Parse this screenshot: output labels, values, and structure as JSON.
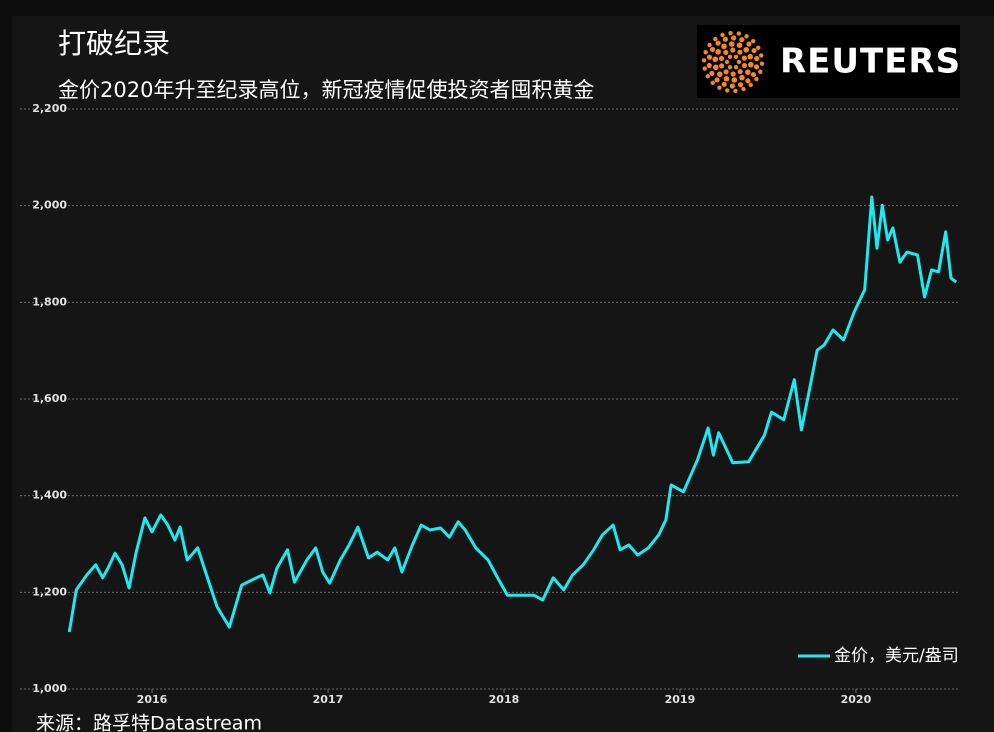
{
  "chart_data": {
    "type": "line",
    "title": "打破纪录",
    "subtitle": "金价2020年升至纪录高位，新冠疫情促使投资者囤积黄金",
    "source": "来源：路孚特Datastream",
    "logo": "REUTERS",
    "legend": "bottom-right",
    "grid": true,
    "xlim": [
      2015.25,
      2020.58
    ],
    "xticks": [
      2016,
      2017,
      2018,
      2019,
      2020
    ],
    "ylim": [
      1000,
      2200
    ],
    "yticks": [
      {
        "value": 1000,
        "label": "1,000"
      },
      {
        "value": 1200,
        "label": "1,200"
      },
      {
        "value": 1400,
        "label": "1,400"
      },
      {
        "value": 1600,
        "label": "1,600"
      },
      {
        "value": 1800,
        "label": "1,800"
      },
      {
        "value": 2000,
        "label": "2,000"
      },
      {
        "value": 2200,
        "label": "2,200"
      }
    ],
    "x": [
      2015.53,
      2015.57,
      2015.63,
      2015.68,
      2015.72,
      2015.75,
      2015.79,
      2015.83,
      2015.87,
      2015.91,
      2015.96,
      2016.0,
      2016.05,
      2016.09,
      2016.13,
      2016.16,
      2016.2,
      2016.26,
      2016.31,
      2016.37,
      2016.44,
      2016.51,
      2016.57,
      2016.63,
      2016.67,
      2016.71,
      2016.77,
      2016.81,
      2016.88,
      2016.93,
      2016.97,
      2017.01,
      2017.07,
      2017.12,
      2017.17,
      2017.23,
      2017.28,
      2017.34,
      2017.38,
      2017.42,
      2017.48,
      2017.53,
      2017.58,
      2017.64,
      2017.69,
      2017.74,
      2017.78,
      2017.84,
      2017.91,
      2017.97,
      2018.02,
      2018.08,
      2018.17,
      2018.22,
      2018.28,
      2018.34,
      2018.39,
      2018.45,
      2018.51,
      2018.56,
      2018.62,
      2018.66,
      2018.71,
      2018.76,
      2018.82,
      2018.88,
      2018.92,
      2018.95,
      2019.02,
      2019.1,
      2019.16,
      2019.19,
      2019.22,
      2019.3,
      2019.39,
      2019.48,
      2019.52,
      2019.59,
      2019.65,
      2019.69,
      2019.73,
      2019.78,
      2019.82,
      2019.87,
      2019.93,
      2019.99,
      2020.05,
      2020.09,
      2020.12,
      2020.15,
      2020.18,
      2020.21,
      2020.25,
      2020.29,
      2020.35,
      2020.39,
      2020.43,
      2020.47,
      2020.51,
      2020.54,
      2020.57
    ],
    "series": [
      {
        "name": "金价，美元/盎司",
        "color": "#1ee8f0",
        "values": [
          1118,
          1205,
          1236,
          1257,
          1230,
          1250,
          1281,
          1257,
          1209,
          1283,
          1354,
          1325,
          1360,
          1339,
          1308,
          1335,
          1267,
          1292,
          1236,
          1170,
          1128,
          1215,
          1226,
          1236,
          1199,
          1250,
          1288,
          1221,
          1267,
          1292,
          1242,
          1219,
          1267,
          1298,
          1335,
          1271,
          1283,
          1267,
          1292,
          1242,
          1298,
          1339,
          1329,
          1333,
          1314,
          1346,
          1329,
          1292,
          1267,
          1226,
          1194,
          1194,
          1194,
          1184,
          1230,
          1205,
          1236,
          1257,
          1288,
          1319,
          1339,
          1288,
          1298,
          1277,
          1292,
          1319,
          1350,
          1422,
          1408,
          1474,
          1540,
          1484,
          1530,
          1468,
          1470,
          1525,
          1573,
          1557,
          1640,
          1536,
          1608,
          1701,
          1712,
          1743,
          1722,
          1780,
          1826,
          2018,
          1912,
          2001,
          1929,
          1954,
          1883,
          1904,
          1898,
          1811,
          1867,
          1863,
          1946,
          1850,
          1842
        ]
      }
    ]
  }
}
